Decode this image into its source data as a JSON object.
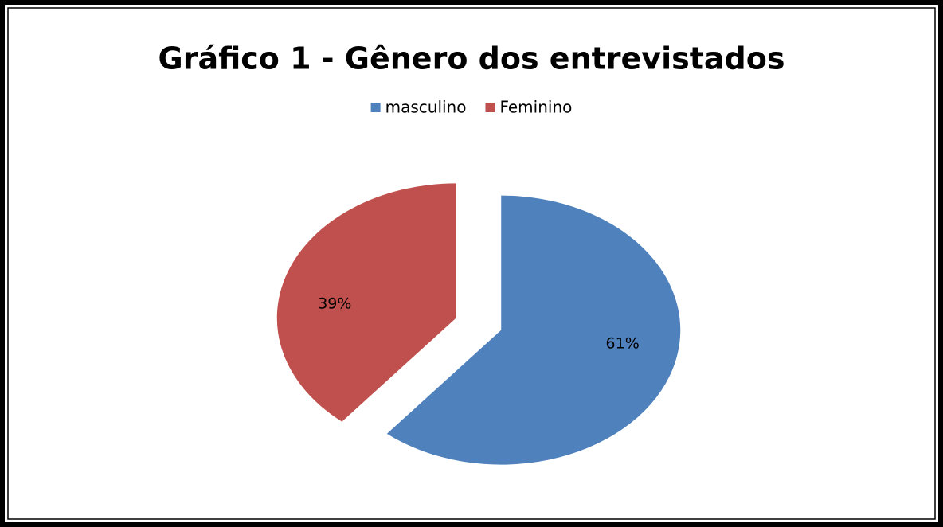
{
  "chart_data": {
    "type": "pie",
    "title": "Gráfico 1 - Gênero dos entrevistados",
    "categories": [
      "masculino",
      "Feminino"
    ],
    "values": [
      61,
      39
    ],
    "value_labels": [
      "61%",
      "39%"
    ],
    "colors": [
      "#4f81bd",
      "#c0504d"
    ],
    "legend": "top"
  }
}
